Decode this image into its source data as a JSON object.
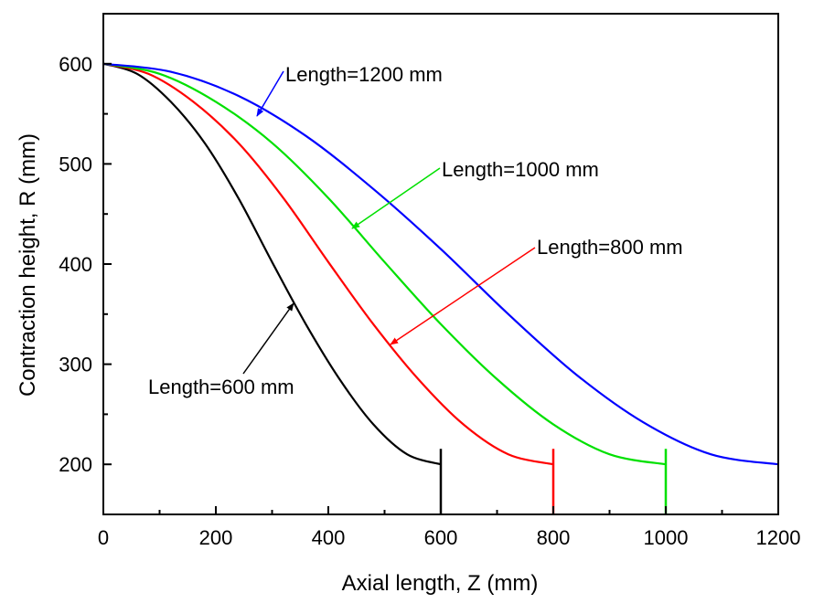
{
  "chart_data": {
    "type": "line",
    "xlabel": "Axial length, Z (mm)",
    "ylabel": "Contraction height, R (mm)",
    "xlim": [
      0,
      1200
    ],
    "ylim": [
      150,
      650
    ],
    "x_ticks": [
      "0",
      "200",
      "400",
      "600",
      "800",
      "1000",
      "1200"
    ],
    "y_ticks": [
      "200",
      "300",
      "400",
      "500",
      "600"
    ],
    "grid": false,
    "legend": "none",
    "inlet_height": 600,
    "outlet_height": 200,
    "series": [
      {
        "length": 600,
        "color": "#000000",
        "annotation": "Length=600 mm",
        "x": [
          0,
          60,
          120,
          180,
          240,
          300,
          360,
          420,
          480,
          540,
          600
        ],
        "y": [
          600,
          590,
          562,
          521,
          466,
          402,
          340,
          285,
          240,
          210,
          200
        ]
      },
      {
        "length": 800,
        "color": "#ff0000",
        "annotation": "Length=800 mm",
        "x": [
          0,
          80,
          160,
          240,
          320,
          400,
          480,
          560,
          640,
          720,
          800
        ],
        "y": [
          600,
          590,
          562,
          521,
          466,
          402,
          340,
          285,
          240,
          210,
          200
        ]
      },
      {
        "length": 1000,
        "color": "#00e000",
        "annotation": "Length=1000 mm",
        "x": [
          0,
          100,
          200,
          300,
          400,
          500,
          600,
          700,
          800,
          900,
          1000
        ],
        "y": [
          600,
          590,
          562,
          521,
          466,
          402,
          340,
          285,
          240,
          210,
          200
        ]
      },
      {
        "length": 1200,
        "color": "#0000ff",
        "annotation": "Length=1200 mm",
        "x": [
          0,
          120,
          240,
          360,
          480,
          600,
          720,
          840,
          960,
          1080,
          1200
        ],
        "y": [
          600,
          592,
          568,
          528,
          475,
          415,
          350,
          290,
          242,
          210,
          200
        ]
      }
    ]
  }
}
